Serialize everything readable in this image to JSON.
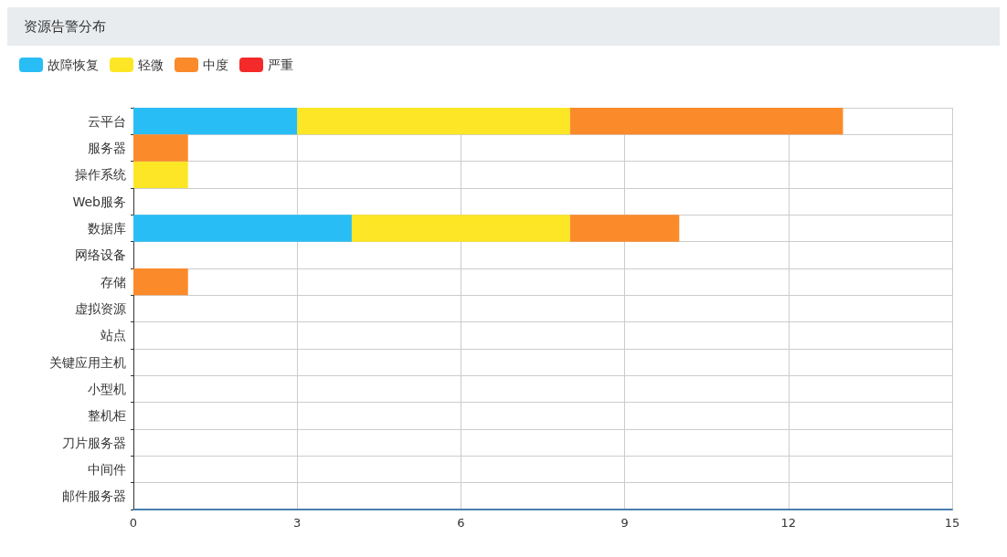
{
  "chart_data": {
    "type": "bar",
    "title": "资源告警分布",
    "orientation": "horizontal",
    "stacked": true,
    "legend": "top left",
    "grid": true,
    "categories": [
      "云平台",
      "服务器",
      "操作系统",
      "Web服务",
      "数据库",
      "网络设备",
      "存储",
      "虚拟资源",
      "站点",
      "关键应用主机",
      "小型机",
      "整机柜",
      "刀片服务器",
      "中间件",
      "邮件服务器"
    ],
    "series": [
      {
        "name": "故障恢复",
        "color": "#29bdf5",
        "values": [
          3,
          0,
          0,
          0,
          4,
          0,
          0,
          0,
          0,
          0,
          0,
          0,
          0,
          0,
          0
        ]
      },
      {
        "name": "轻微",
        "color": "#fce625",
        "values": [
          5,
          0,
          1,
          0,
          4,
          0,
          0,
          0,
          0,
          0,
          0,
          0,
          0,
          0,
          0
        ]
      },
      {
        "name": "中度",
        "color": "#fb8a2b",
        "values": [
          5,
          1,
          0,
          0,
          2,
          0,
          1,
          0,
          0,
          0,
          0,
          0,
          0,
          0,
          0
        ]
      },
      {
        "name": "严重",
        "color": "#f42a2a",
        "values": [
          0,
          0,
          0,
          0,
          0,
          0,
          0,
          0,
          0,
          0,
          0,
          0,
          0,
          0,
          0
        ]
      }
    ],
    "xlim": [
      0,
      15
    ],
    "xticks": [
      0,
      3,
      6,
      9,
      12,
      15
    ]
  }
}
